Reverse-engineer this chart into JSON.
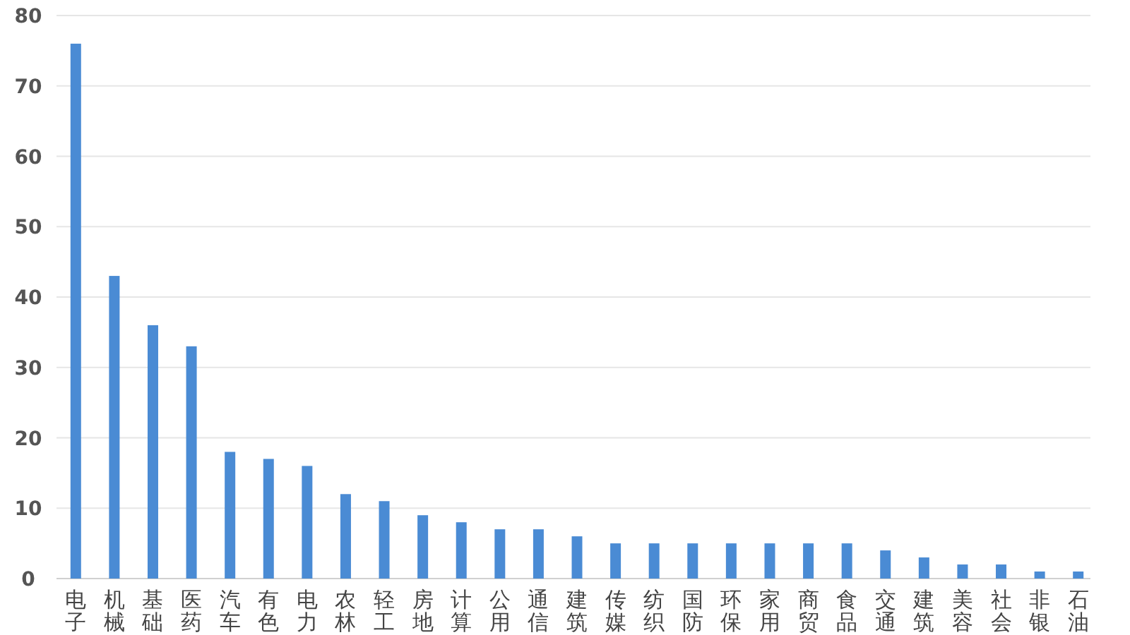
{
  "chart_data": {
    "type": "bar",
    "categories": [
      "电子",
      "机械",
      "基础",
      "医药",
      "汽车",
      "有色",
      "电力",
      "农林",
      "轻工",
      "房地",
      "计算",
      "公用",
      "通信",
      "建筑",
      "传媒",
      "纺织",
      "国防",
      "环保",
      "家用",
      "商贸",
      "食品",
      "交通",
      "建筑",
      "美容",
      "社会",
      "非银",
      "石油"
    ],
    "values": [
      76,
      43,
      36,
      33,
      18,
      17,
      16,
      12,
      11,
      9,
      8,
      7,
      7,
      6,
      5,
      5,
      5,
      5,
      5,
      5,
      5,
      4,
      3,
      2,
      2,
      1,
      1
    ],
    "color": "#4a8bd4",
    "ylim": [
      0,
      80
    ],
    "yticks": [
      0,
      10,
      20,
      30,
      40,
      50,
      60,
      70,
      80
    ],
    "grid": "y"
  }
}
